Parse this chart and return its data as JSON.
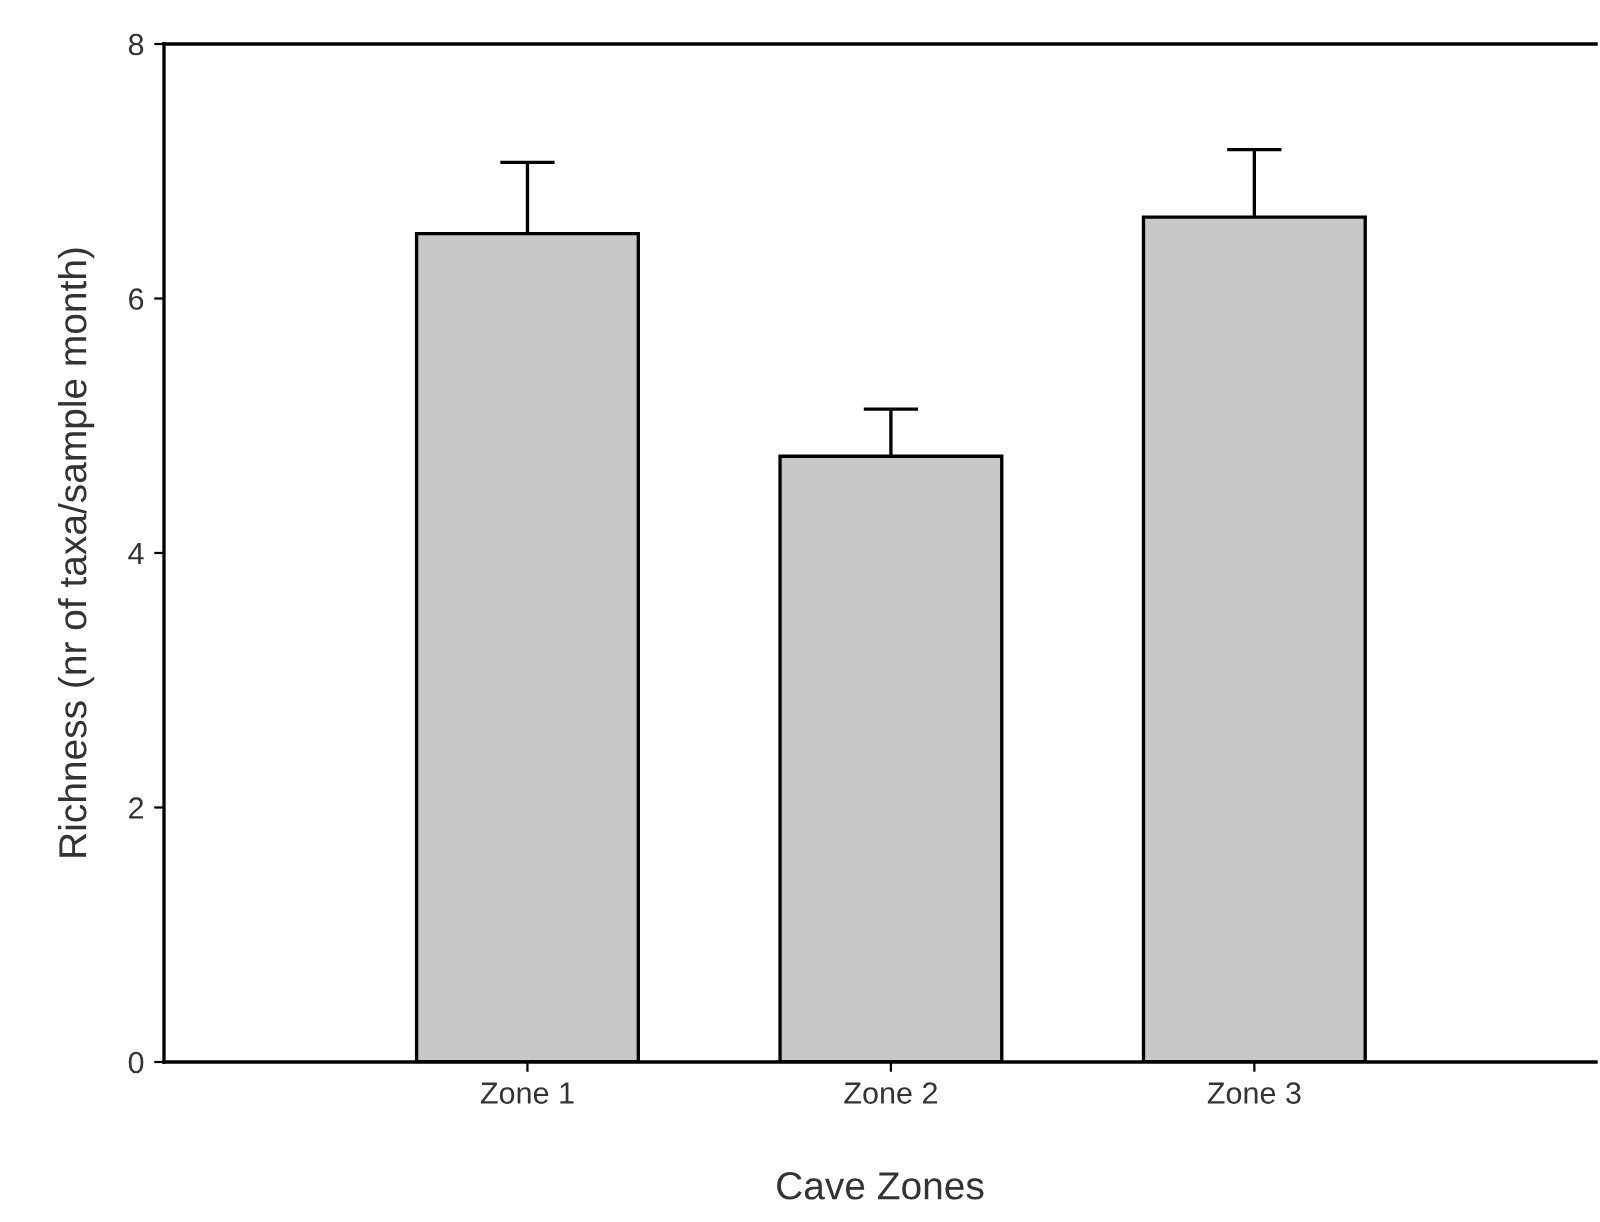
{
  "chart_data": {
    "type": "bar",
    "xlabel": "Cave Zones",
    "ylabel": "Richness (nr of taxa/sample month)",
    "categories": [
      "Zone 1",
      "Zone 2",
      "Zone 3"
    ],
    "values": [
      6.51,
      4.76,
      6.64
    ],
    "errors": [
      [
        6.51,
        7.07
      ],
      [
        4.76,
        5.13
      ],
      [
        6.64,
        7.17
      ]
    ],
    "color": "#c8c8c8",
    "ylim": [
      0,
      8
    ],
    "yticks": [
      0,
      2,
      4,
      6,
      8
    ],
    "grid": false,
    "legend": false
  }
}
